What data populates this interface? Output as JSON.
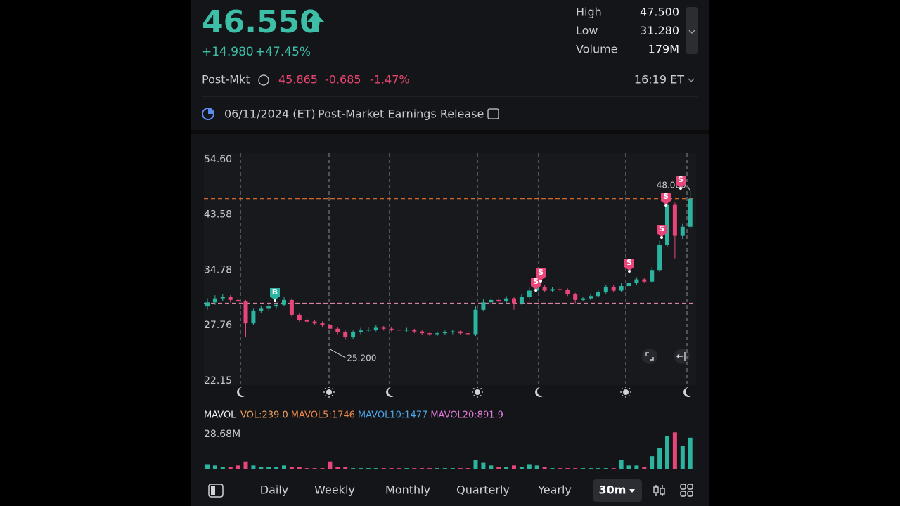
{
  "header": {
    "price": "46.550",
    "change": "+14.980",
    "change_percent": "+47.45%",
    "stats": [
      {
        "label": "High",
        "value": "47.500"
      },
      {
        "label": "Low",
        "value": "31.280"
      },
      {
        "label": "Volume",
        "value": "179M"
      }
    ]
  },
  "post_market": {
    "label": "Post-Mkt",
    "price": "45.865",
    "change": "-0.685",
    "change_percent": "-1.47%",
    "time": "16:19 ET"
  },
  "event": {
    "date": "06/11/2024 (ET)",
    "title": "Post-Market Earnings Release"
  },
  "chart_data": [
    {
      "type": "candlestick",
      "log": true,
      "ylim": [
        22.15,
        54.6
      ],
      "yticks": [
        {
          "value": 54.6,
          "label": "54.60"
        },
        43.58,
        34.78,
        27.76,
        22.15
      ],
      "colors": {
        "up": "#2bb5a0",
        "down": "#e8457a"
      },
      "reference_lines": [
        {
          "value": 46.55,
          "color": "#e8732a"
        },
        {
          "value": 30.4,
          "color": "#d9829f"
        }
      ],
      "annotations": [
        {
          "value": 48.0,
          "label": "48.000"
        },
        {
          "value": 25.2,
          "label": "25.200"
        }
      ],
      "trade_markers": [
        "B",
        "S",
        "S",
        "S",
        "S",
        "S",
        "S"
      ],
      "candles": [
        [
          30.0,
          31.0,
          29.6,
          30.5
        ],
        [
          30.5,
          31.4,
          30.2,
          31.0
        ],
        [
          31.0,
          31.5,
          30.7,
          31.2
        ],
        [
          31.2,
          31.4,
          30.5,
          30.8
        ],
        [
          30.8,
          31.0,
          30.3,
          30.6
        ],
        [
          30.6,
          30.8,
          26.5,
          28.0
        ],
        [
          28.0,
          29.8,
          27.8,
          29.5
        ],
        [
          29.5,
          30.1,
          29.2,
          29.8
        ],
        [
          29.8,
          30.3,
          29.5,
          30.0
        ],
        [
          30.0,
          30.5,
          29.8,
          30.2
        ],
        [
          30.2,
          31.2,
          30.0,
          30.8
        ],
        [
          30.8,
          31.0,
          28.8,
          29.0
        ],
        [
          29.0,
          29.2,
          28.2,
          28.4
        ],
        [
          28.4,
          28.6,
          28.0,
          28.2
        ],
        [
          28.2,
          28.4,
          27.8,
          28.0
        ],
        [
          28.0,
          28.2,
          27.6,
          27.8
        ],
        [
          27.8,
          28.0,
          25.2,
          27.4
        ],
        [
          27.4,
          27.6,
          26.8,
          27.0
        ],
        [
          27.0,
          27.2,
          26.2,
          26.5
        ],
        [
          26.5,
          27.2,
          26.3,
          27.0
        ],
        [
          27.0,
          27.5,
          26.8,
          27.2
        ],
        [
          27.2,
          27.6,
          27.0,
          27.3
        ],
        [
          27.3,
          27.8,
          27.1,
          27.5
        ],
        [
          27.5,
          27.7,
          27.2,
          27.4
        ],
        [
          27.4,
          27.6,
          27.1,
          27.3
        ],
        [
          27.3,
          27.5,
          27.0,
          27.2
        ],
        [
          27.2,
          27.5,
          27.0,
          27.3
        ],
        [
          27.3,
          27.4,
          26.9,
          27.1
        ],
        [
          27.1,
          27.2,
          26.7,
          26.9
        ],
        [
          26.9,
          27.0,
          26.6,
          26.8
        ],
        [
          26.8,
          27.1,
          26.6,
          26.9
        ],
        [
          26.9,
          27.2,
          26.7,
          27.0
        ],
        [
          27.0,
          27.3,
          26.8,
          27.1
        ],
        [
          27.1,
          27.2,
          26.7,
          26.9
        ],
        [
          26.9,
          27.0,
          26.5,
          26.8
        ],
        [
          26.8,
          30.0,
          26.6,
          29.6
        ],
        [
          29.6,
          30.9,
          29.4,
          30.5
        ],
        [
          30.5,
          31.1,
          30.2,
          30.8
        ],
        [
          30.8,
          31.0,
          30.3,
          30.6
        ],
        [
          30.6,
          31.3,
          30.4,
          31.0
        ],
        [
          31.0,
          31.2,
          29.6,
          30.4
        ],
        [
          30.4,
          31.5,
          30.2,
          31.2
        ],
        [
          31.2,
          32.4,
          31.0,
          32.0
        ],
        [
          32.0,
          33.2,
          31.8,
          32.5
        ],
        [
          32.5,
          32.7,
          31.8,
          32.0
        ],
        [
          32.0,
          32.5,
          31.8,
          32.2
        ],
        [
          32.2,
          32.4,
          31.9,
          32.1
        ],
        [
          32.1,
          32.3,
          31.3,
          31.5
        ],
        [
          31.5,
          31.7,
          30.4,
          30.8
        ],
        [
          30.8,
          31.2,
          30.6,
          31.0
        ],
        [
          31.0,
          31.5,
          30.8,
          31.3
        ],
        [
          31.3,
          32.1,
          31.1,
          31.8
        ],
        [
          31.8,
          32.8,
          31.6,
          32.5
        ],
        [
          32.5,
          32.7,
          31.8,
          32.0
        ],
        [
          32.0,
          33.0,
          31.8,
          32.6
        ],
        [
          32.6,
          33.3,
          32.4,
          33.0
        ],
        [
          33.0,
          33.8,
          32.8,
          33.5
        ],
        [
          33.5,
          33.7,
          33.0,
          33.2
        ],
        [
          33.2,
          35.2,
          33.0,
          34.8
        ],
        [
          34.8,
          39.2,
          34.5,
          38.5
        ],
        [
          38.5,
          46.2,
          38.2,
          45.5
        ],
        [
          45.5,
          45.8,
          36.5,
          40.0
        ],
        [
          40.0,
          42.0,
          39.5,
          41.5
        ],
        [
          41.5,
          48.0,
          41.2,
          46.55
        ]
      ]
    },
    {
      "type": "bar",
      "title": "MAVOL",
      "ylim": [
        0,
        28.68
      ],
      "yticks": [
        {
          "value": 28.68,
          "label": "28.68M"
        }
      ],
      "legend": [
        {
          "text": "VOL:239.0",
          "color": "#f0a060"
        },
        {
          "text": "MAVOL5:1746",
          "color": "#f08a4b"
        },
        {
          "text": "MAVOL10:1477",
          "color": "#4fa8e8"
        },
        {
          "text": "MAVOL20:891.9",
          "color": "#e07ad8"
        }
      ],
      "values": [
        4,
        3,
        2,
        2,
        3,
        6,
        3,
        2,
        2,
        2,
        3,
        2,
        2,
        1,
        1,
        1,
        6,
        2,
        2,
        1,
        1,
        1,
        1,
        1,
        1,
        1,
        1,
        1,
        1,
        1,
        1,
        1,
        1,
        1,
        1,
        7,
        5,
        3,
        2,
        2,
        3,
        2,
        4,
        3,
        2,
        1,
        1,
        1,
        1,
        1,
        1,
        1,
        1,
        1,
        7,
        3,
        3,
        2,
        10,
        16,
        25,
        28,
        18,
        24
      ]
    }
  ],
  "tabs": [
    "Daily",
    "Weekly",
    "Monthly",
    "Quarterly",
    "Yearly",
    "30m"
  ]
}
